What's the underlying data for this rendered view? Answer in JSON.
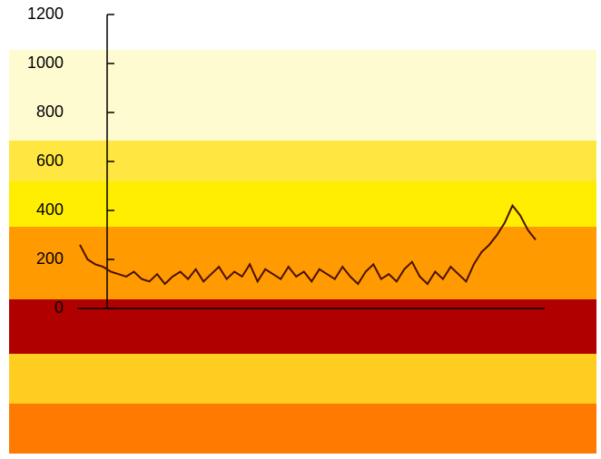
{
  "chart_data": {
    "type": "line",
    "color": "#4a1000",
    "values": [
      260,
      200,
      180,
      170,
      150,
      140,
      130,
      150,
      120,
      110,
      140,
      100,
      130,
      150,
      120,
      160,
      110,
      140,
      170,
      120,
      150,
      130,
      180,
      110,
      160,
      140,
      120,
      170,
      130,
      150,
      110,
      160,
      140,
      120,
      170,
      130,
      100,
      150,
      180,
      120,
      140,
      110,
      160,
      190,
      130,
      100,
      150,
      120,
      170,
      140,
      110,
      180,
      230,
      260,
      300,
      350,
      420,
      380,
      320,
      280
    ],
    "ylim": [
      0,
      1200
    ],
    "yticks": [
      0,
      200,
      400,
      600,
      800,
      1000,
      1200
    ]
  }
}
